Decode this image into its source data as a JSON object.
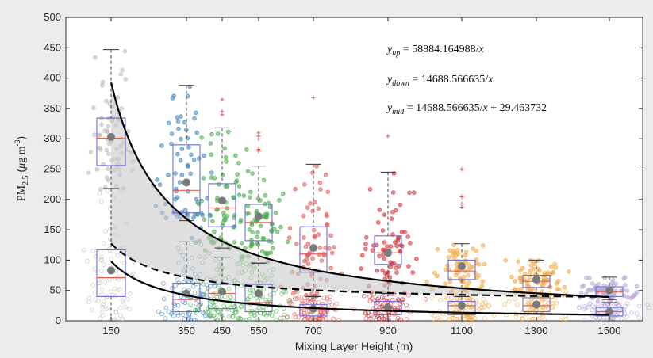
{
  "chart_data": {
    "type": "scatter",
    "title": "",
    "xlabel": "Mixing Layer Height (m)",
    "ylabel_main": "PM",
    "ylabel_sub": "2.5",
    "ylabel_units_pre": " (",
    "ylabel_mu": "μ",
    "ylabel_units_mid": "g m",
    "ylabel_exp": "-3",
    "ylabel_units_post": ")",
    "x_ticks": [
      150,
      350,
      450,
      550,
      700,
      900,
      1100,
      1300,
      1500
    ],
    "x_tick_labels": [
      "150",
      "350",
      "450",
      "550",
      "700",
      "900",
      "1100",
      "1300",
      "1500"
    ],
    "xlim": [
      0,
      1600
    ],
    "ylim": [
      0,
      500
    ],
    "y_ticks": [
      0,
      50,
      100,
      150,
      200,
      250,
      300,
      350,
      400,
      450,
      500
    ],
    "y_tick_labels": [
      "0",
      "50",
      "100",
      "150",
      "200",
      "250",
      "300",
      "350",
      "400",
      "450",
      "500"
    ],
    "grid": false,
    "groups": [
      {
        "x": 150,
        "color": "#b9b9b9",
        "upper": {
          "q1": 256,
          "median": 301,
          "q3": 334,
          "mean": 303,
          "wlo": 218,
          "whi": 447,
          "outliers": []
        },
        "lower": {
          "q1": 40,
          "median": 71,
          "q3": 117,
          "mean": 83,
          "wlo": 0,
          "whi": 218,
          "outliers": []
        }
      },
      {
        "x": 350,
        "color": "#3b7fc0",
        "upper": {
          "q1": 178,
          "median": 215,
          "q3": 290,
          "mean": 228,
          "wlo": 165,
          "whi": 388,
          "outliers": []
        },
        "lower": {
          "q1": 15,
          "median": 35,
          "q3": 62,
          "mean": 45,
          "wlo": 0,
          "whi": 130,
          "outliers": []
        }
      },
      {
        "x": 450,
        "color": "#43a945",
        "upper": {
          "q1": 155,
          "median": 186,
          "q3": 226,
          "mean": 198,
          "wlo": 120,
          "whi": 318,
          "outliers": [
            340,
            345,
            365
          ]
        },
        "lower": {
          "q1": 20,
          "median": 45,
          "q3": 60,
          "mean": 48,
          "wlo": 0,
          "whi": 105,
          "outliers": []
        }
      },
      {
        "x": 550,
        "color": "#43a945",
        "upper": {
          "q1": 132,
          "median": 162,
          "q3": 192,
          "mean": 172,
          "wlo": 95,
          "whi": 255,
          "outliers": [
            280,
            283,
            300,
            305,
            310
          ]
        },
        "lower": {
          "q1": 15,
          "median": 30,
          "q3": 60,
          "mean": 45,
          "wlo": 0,
          "whi": 95,
          "outliers": []
        }
      },
      {
        "x": 700,
        "color": "#e05252",
        "upper": {
          "q1": 80,
          "median": 110,
          "q3": 155,
          "mean": 120,
          "wlo": 40,
          "whi": 258,
          "outliers": [
            368
          ]
        },
        "lower": {
          "q1": 8,
          "median": 18,
          "q3": 27,
          "mean": 20,
          "wlo": 0,
          "whi": 40,
          "outliers": []
        }
      },
      {
        "x": 900,
        "color": "#d6262d",
        "upper": {
          "q1": 93,
          "median": 112,
          "q3": 140,
          "mean": 112,
          "wlo": 45,
          "whi": 245,
          "outliers": [
            305
          ]
        },
        "lower": {
          "q1": 10,
          "median": 20,
          "q3": 32,
          "mean": 22,
          "wlo": 0,
          "whi": 45,
          "outliers": []
        }
      },
      {
        "x": 1100,
        "color": "#f2a541",
        "upper": {
          "q1": 68,
          "median": 82,
          "q3": 100,
          "mean": 90,
          "wlo": 40,
          "whi": 127,
          "outliers": [
            188,
            193,
            205,
            250
          ]
        },
        "lower": {
          "q1": 10,
          "median": 25,
          "q3": 32,
          "mean": 25,
          "wlo": 0,
          "whi": 40,
          "outliers": []
        }
      },
      {
        "x": 1300,
        "color": "#f2a541",
        "upper": {
          "q1": 55,
          "median": 65,
          "q3": 75,
          "mean": 68,
          "wlo": 45,
          "whi": 100,
          "outliers": []
        },
        "lower": {
          "q1": 15,
          "median": 25,
          "q3": 38,
          "mean": 27,
          "wlo": 0,
          "whi": 45,
          "outliers": []
        }
      },
      {
        "x": 1500,
        "color": "#b7a6d6",
        "upper": {
          "q1": 40,
          "median": 48,
          "q3": 56,
          "mean": 50,
          "wlo": 35,
          "whi": 72,
          "outliers": []
        },
        "lower": {
          "q1": 8,
          "median": 15,
          "q3": 22,
          "mean": 15,
          "wlo": 0,
          "whi": 30,
          "outliers": []
        }
      }
    ],
    "curves": [
      {
        "label_main": "y",
        "label_sub": "up",
        "rest": " = 58884.164988/",
        "var": "x",
        "a": 58884.164988,
        "b": 0,
        "style": "solid",
        "width": 2.2
      },
      {
        "label_main": "y",
        "label_sub": "down",
        "rest": " = 14688.566635/",
        "var": "x",
        "a": 14688.566635,
        "b": 0,
        "style": "solid",
        "width": 2.2
      },
      {
        "label_main": "y",
        "label_sub": "mid",
        "rest": " = 14688.566635/",
        "var": "x",
        "tail": " + 29.463732",
        "a": 14688.566635,
        "b": 29.463732,
        "style": "dashed",
        "width": 2.2
      }
    ],
    "band_fill": "#c9c9c9",
    "mean_marker_color": "#7a7a7a",
    "box_color": "#6b6bd6",
    "median_color": "#e0605a",
    "outlier_color": "#e03030"
  }
}
